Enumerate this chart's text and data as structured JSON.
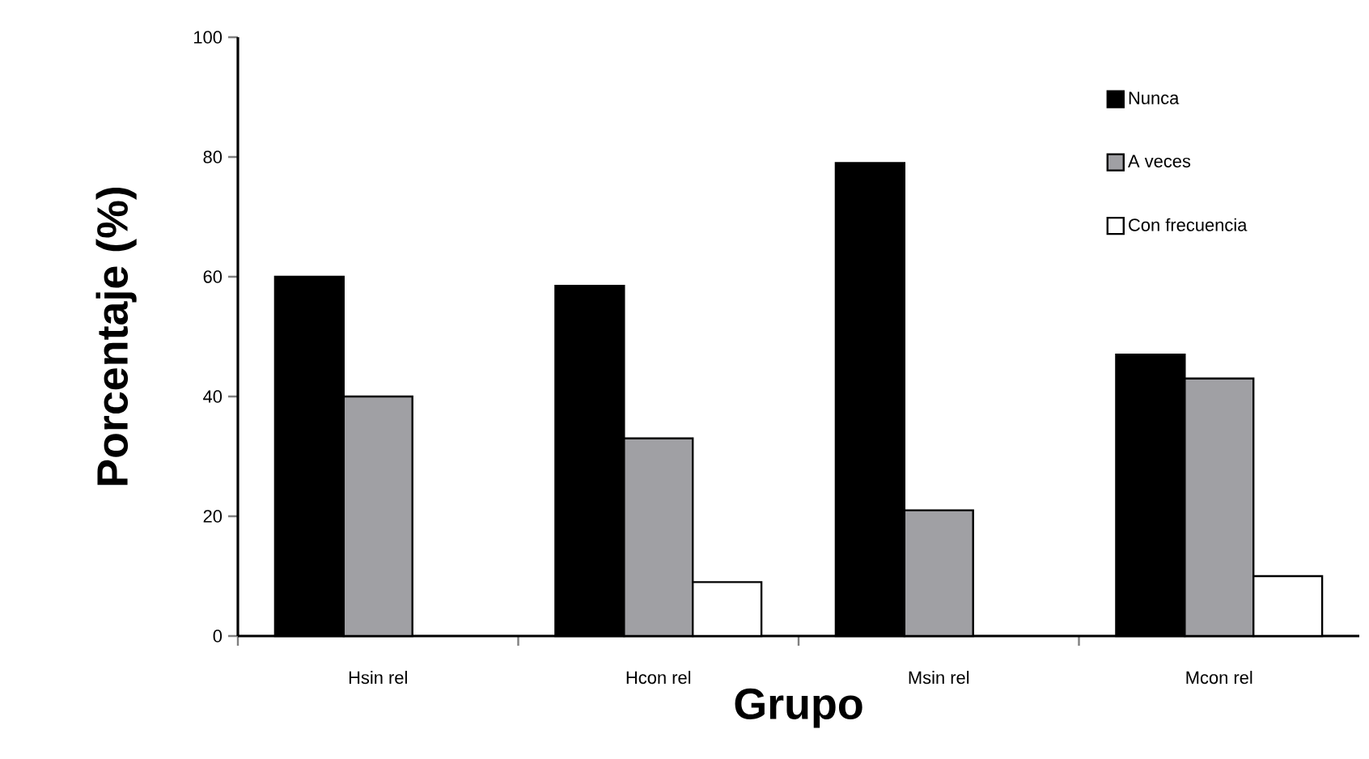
{
  "chart_data": {
    "type": "bar",
    "xlabel": "Grupo",
    "ylabel": "Porcentaje (%)",
    "categories": [
      "Hsin rel",
      "Hcon rel",
      "Msin rel",
      "Mcon rel"
    ],
    "series": [
      {
        "name": "Nunca",
        "color": "#000000",
        "values": [
          60,
          58.5,
          79,
          47
        ]
      },
      {
        "name": "A veces",
        "color": "#a0a0a4",
        "values": [
          40,
          33,
          21,
          43
        ]
      },
      {
        "name": "Con frecuencia",
        "color": "#ffffff",
        "values": [
          null,
          9,
          null,
          10
        ]
      }
    ],
    "ylim": [
      0,
      100
    ],
    "yticks": [
      0,
      20,
      40,
      60,
      80,
      100
    ],
    "grid": false,
    "legend": "top right"
  }
}
